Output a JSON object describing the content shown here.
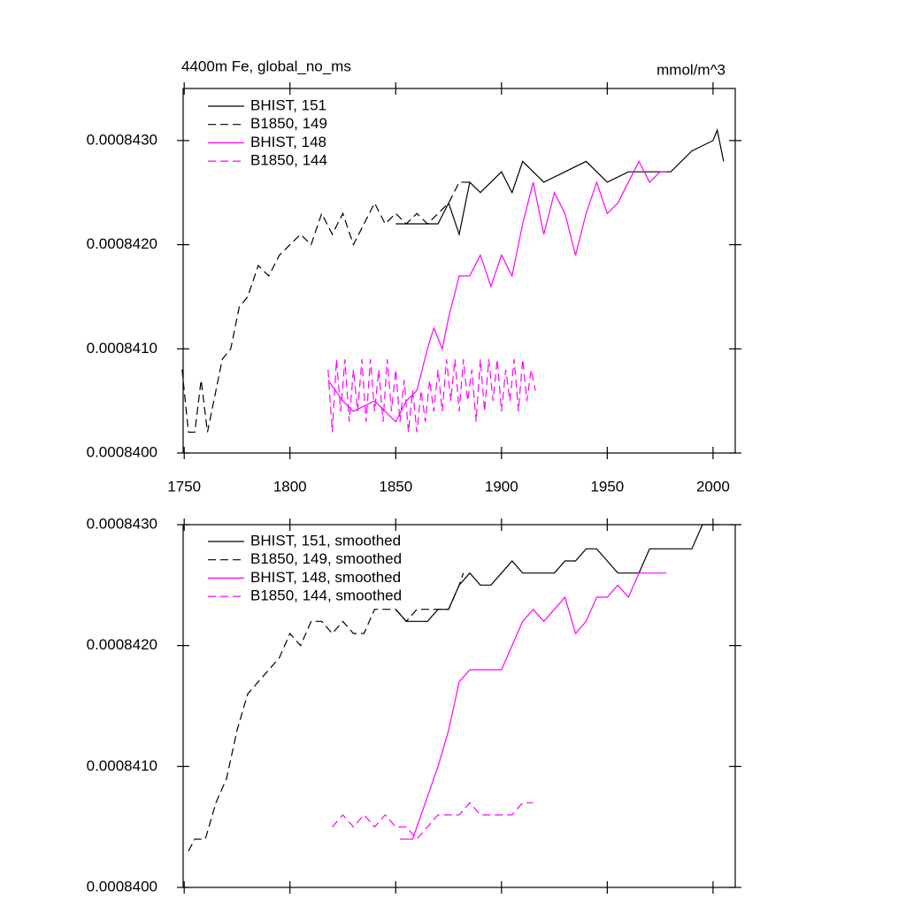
{
  "chart_data": [
    {
      "type": "line",
      "title": "4400m Fe, global_no_ms",
      "units": "mmol/m^3",
      "xlim": [
        1749.5,
        2010.5
      ],
      "xticks": [
        1750,
        1800,
        1850,
        1900,
        1950,
        2000
      ],
      "ylim": [
        0.00084,
        0.0008435
      ],
      "yticks": [
        {
          "value": 0.00084,
          "label": "0.0008400"
        },
        {
          "value": 0.000841,
          "label": "0.0008410"
        },
        {
          "value": 0.000842,
          "label": "0.0008420"
        },
        {
          "value": 0.000843,
          "label": "0.0008430"
        }
      ],
      "series": [
        {
          "name": "BHIST, 151",
          "color": "#000000",
          "dashed": false,
          "x": [
            1850,
            1860,
            1870,
            1875,
            1880,
            1885,
            1890,
            1900,
            1905,
            1910,
            1920,
            1930,
            1940,
            1950,
            1960,
            1970,
            1980,
            1990,
            2000,
            2002,
            2005
          ],
          "values": [
            0.0008422,
            0.0008422,
            0.0008422,
            0.0008424,
            0.0008421,
            0.0008426,
            0.0008425,
            0.0008427,
            0.0008425,
            0.0008428,
            0.0008426,
            0.0008427,
            0.0008428,
            0.0008426,
            0.0008427,
            0.0008427,
            0.0008427,
            0.0008429,
            0.000843,
            0.0008431,
            0.0008428
          ]
        },
        {
          "name": "B1850, 149",
          "color": "#000000",
          "dashed": true,
          "x": [
            1749,
            1752,
            1755,
            1758,
            1761,
            1765,
            1768,
            1772,
            1776,
            1780,
            1785,
            1790,
            1795,
            1800,
            1805,
            1810,
            1815,
            1820,
            1825,
            1830,
            1835,
            1840,
            1845,
            1850,
            1855,
            1860,
            1865,
            1870,
            1875,
            1880,
            1885
          ],
          "values": [
            0.0008408,
            0.0008402,
            0.0008402,
            0.0008407,
            0.0008402,
            0.0008406,
            0.0008409,
            0.000841,
            0.0008414,
            0.0008415,
            0.0008418,
            0.0008417,
            0.0008419,
            0.000842,
            0.0008421,
            0.000842,
            0.0008423,
            0.0008421,
            0.0008423,
            0.000842,
            0.0008422,
            0.0008424,
            0.0008422,
            0.0008423,
            0.0008422,
            0.0008423,
            0.0008422,
            0.0008423,
            0.0008424,
            0.0008426,
            0.0008426
          ]
        },
        {
          "name": "BHIST, 148",
          "color": "#ff00ff",
          "dashed": false,
          "x": [
            1818,
            1825,
            1830,
            1840,
            1845,
            1850,
            1855,
            1860,
            1865,
            1868,
            1872,
            1875,
            1880,
            1885,
            1890,
            1895,
            1900,
            1905,
            1910,
            1915,
            1920,
            1925,
            1930,
            1935,
            1940,
            1945,
            1950,
            1955,
            1960,
            1965,
            1970,
            1975,
            1978
          ],
          "values": [
            0.0008407,
            0.0008405,
            0.0008404,
            0.0008405,
            0.0008404,
            0.0008403,
            0.0008405,
            0.0008406,
            0.000841,
            0.0008412,
            0.000841,
            0.0008413,
            0.0008417,
            0.0008417,
            0.0008419,
            0.0008416,
            0.0008419,
            0.0008417,
            0.0008422,
            0.0008426,
            0.0008421,
            0.0008425,
            0.0008423,
            0.0008419,
            0.0008423,
            0.0008426,
            0.0008423,
            0.0008424,
            0.0008426,
            0.0008428,
            0.0008426,
            0.0008427,
            0.0008427
          ]
        },
        {
          "name": "B1850, 144",
          "color": "#ff00ff",
          "dashed": true,
          "x": [
            1818,
            1820,
            1822,
            1824,
            1826,
            1828,
            1830,
            1832,
            1834,
            1836,
            1838,
            1840,
            1842,
            1844,
            1846,
            1848,
            1850,
            1852,
            1854,
            1856,
            1858,
            1860,
            1862,
            1864,
            1866,
            1868,
            1870,
            1872,
            1874,
            1876,
            1878,
            1880,
            1882,
            1884,
            1886,
            1888,
            1890,
            1892,
            1894,
            1896,
            1898,
            1900,
            1902,
            1904,
            1906,
            1908,
            1910,
            1912,
            1914,
            1916
          ],
          "values": [
            0.0008408,
            0.0008402,
            0.0008409,
            0.0008404,
            0.0008409,
            0.0008403,
            0.0008408,
            0.0008404,
            0.0008409,
            0.0008403,
            0.0008409,
            0.0008404,
            0.0008408,
            0.0008403,
            0.0008409,
            0.0008404,
            0.0008408,
            0.0008403,
            0.0008407,
            0.0008402,
            0.0008406,
            0.0008402,
            0.0008406,
            0.0008403,
            0.0008407,
            0.0008404,
            0.0008408,
            0.0008404,
            0.0008409,
            0.0008405,
            0.0008409,
            0.0008404,
            0.0008409,
            0.0008405,
            0.0008408,
            0.0008403,
            0.0008409,
            0.0008404,
            0.0008409,
            0.0008405,
            0.0008409,
            0.0008404,
            0.0008408,
            0.0008405,
            0.0008409,
            0.0008404,
            0.0008409,
            0.0008405,
            0.0008408,
            0.0008406
          ]
        }
      ]
    },
    {
      "type": "line",
      "xlim": [
        1749.5,
        2010.5
      ],
      "xticks": [
        1750,
        1800,
        1850,
        1900,
        1950,
        2000
      ],
      "ylim": [
        0.00084,
        0.000843
      ],
      "yticks": [
        {
          "value": 0.00084,
          "label": "0.0008400"
        },
        {
          "value": 0.000841,
          "label": "0.0008410"
        },
        {
          "value": 0.000842,
          "label": "0.0008420"
        },
        {
          "value": 0.000843,
          "label": "0.0008430"
        }
      ],
      "series": [
        {
          "name": "BHIST, 151, smoothed",
          "color": "#000000",
          "dashed": false,
          "x": [
            1850,
            1855,
            1860,
            1865,
            1870,
            1875,
            1880,
            1885,
            1890,
            1895,
            1900,
            1905,
            1910,
            1915,
            1920,
            1925,
            1930,
            1935,
            1940,
            1945,
            1950,
            1955,
            1960,
            1965,
            1970,
            1975,
            1980,
            1985,
            1990,
            1995,
            2000,
            2003
          ],
          "values": [
            0.0008423,
            0.0008422,
            0.0008422,
            0.0008422,
            0.0008423,
            0.0008423,
            0.0008425,
            0.0008426,
            0.0008425,
            0.0008425,
            0.0008426,
            0.0008427,
            0.0008426,
            0.0008426,
            0.0008426,
            0.0008426,
            0.0008427,
            0.0008427,
            0.0008428,
            0.0008428,
            0.0008427,
            0.0008426,
            0.0008426,
            0.0008426,
            0.0008428,
            0.0008428,
            0.0008428,
            0.0008428,
            0.0008428,
            0.000843,
            0.000843,
            0.000843
          ]
        },
        {
          "name": "B1850, 149, smoothed",
          "color": "#000000",
          "dashed": true,
          "x": [
            1752,
            1755,
            1760,
            1765,
            1770,
            1775,
            1780,
            1785,
            1790,
            1795,
            1800,
            1805,
            1810,
            1815,
            1820,
            1825,
            1830,
            1835,
            1840,
            1845,
            1850,
            1855,
            1860,
            1865,
            1870,
            1875,
            1880,
            1882
          ],
          "values": [
            0.0008403,
            0.0008404,
            0.0008404,
            0.0008407,
            0.0008409,
            0.0008413,
            0.0008416,
            0.0008417,
            0.0008418,
            0.0008419,
            0.0008421,
            0.000842,
            0.0008422,
            0.0008422,
            0.0008421,
            0.0008422,
            0.0008421,
            0.0008421,
            0.0008423,
            0.0008423,
            0.0008423,
            0.0008422,
            0.0008423,
            0.0008423,
            0.0008423,
            0.0008423,
            0.0008425,
            0.0008426
          ]
        },
        {
          "name": "BHIST, 148, smoothed",
          "color": "#ff00ff",
          "dashed": false,
          "x": [
            1852,
            1858,
            1862,
            1866,
            1870,
            1875,
            1880,
            1885,
            1890,
            1895,
            1900,
            1905,
            1910,
            1915,
            1920,
            1925,
            1930,
            1935,
            1940,
            1945,
            1950,
            1955,
            1960,
            1965,
            1970,
            1975,
            1978
          ],
          "values": [
            0.0008404,
            0.0008404,
            0.0008406,
            0.0008408,
            0.000841,
            0.0008413,
            0.0008417,
            0.0008418,
            0.0008418,
            0.0008418,
            0.0008418,
            0.000842,
            0.0008422,
            0.0008423,
            0.0008422,
            0.0008423,
            0.0008424,
            0.0008421,
            0.0008422,
            0.0008424,
            0.0008424,
            0.0008425,
            0.0008424,
            0.0008426,
            0.0008426,
            0.0008426,
            0.0008426
          ]
        },
        {
          "name": "B1850, 144, smoothed",
          "color": "#ff00ff",
          "dashed": true,
          "x": [
            1820,
            1825,
            1830,
            1835,
            1840,
            1845,
            1850,
            1855,
            1860,
            1865,
            1870,
            1875,
            1880,
            1885,
            1890,
            1895,
            1900,
            1905,
            1910,
            1915
          ],
          "values": [
            0.0008405,
            0.0008406,
            0.0008405,
            0.0008406,
            0.0008405,
            0.0008406,
            0.0008405,
            0.0008405,
            0.0008404,
            0.0008405,
            0.0008406,
            0.0008406,
            0.0008406,
            0.0008407,
            0.0008406,
            0.0008406,
            0.0008406,
            0.0008406,
            0.0008407,
            0.0008407
          ]
        }
      ]
    }
  ]
}
